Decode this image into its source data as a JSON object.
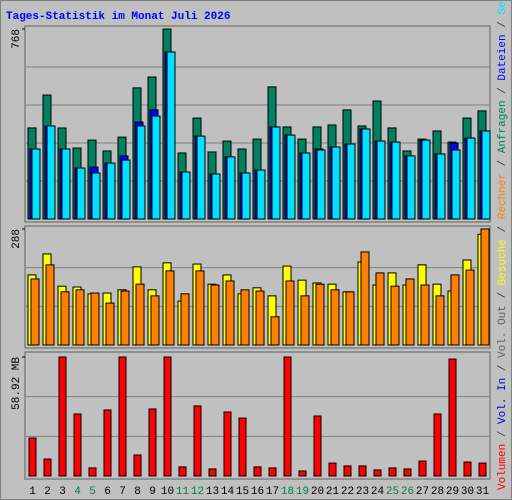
{
  "chart_data": {
    "type": "bar",
    "title": "Tages-Statistik im Monat Juli 2026",
    "categories": [
      "1",
      "2",
      "3",
      "4",
      "5",
      "6",
      "7",
      "8",
      "9",
      "10",
      "11",
      "12",
      "13",
      "14",
      "15",
      "16",
      "17",
      "18",
      "19",
      "20",
      "21",
      "22",
      "23",
      "24",
      "25",
      "26",
      "27",
      "28",
      "29",
      "30",
      "31"
    ],
    "category_colors": [
      "#000000",
      "#000000",
      "#000000",
      "#008040",
      "#008040",
      "#000000",
      "#000000",
      "#000000",
      "#000000",
      "#000000",
      "#008040",
      "#008040",
      "#000000",
      "#000000",
      "#000000",
      "#000000",
      "#000000",
      "#008040",
      "#008040",
      "#000000",
      "#000000",
      "#000000",
      "#000000",
      "#000000",
      "#008040",
      "#008040",
      "#000000",
      "#000000",
      "#000000",
      "#000000",
      "#000000"
    ],
    "panels": [
      {
        "ylim": [
          0,
          768
        ],
        "yticks": [
          768
        ],
        "series": [
          {
            "name": "Anfragen",
            "color": "#00805c",
            "values": [
              368,
              501,
              368,
              287,
              319,
              275,
              331,
              530,
              574,
              768,
              267,
              408,
              271,
              315,
              283,
              323,
              534,
              372,
              323,
              372,
              380,
              441,
              376,
              477,
              368,
              275,
              323,
              356,
              311,
              408,
              437
            ]
          },
          {
            "name": "Dateien",
            "color": "#0000ff",
            "values": [
              283,
              376,
              283,
              206,
              210,
              226,
              255,
              392,
              441,
              675,
              190,
              335,
              182,
              251,
              186,
              198,
              372,
              339,
              267,
              283,
              291,
              303,
              364,
              315,
              311,
              255,
              319,
              263,
              307,
              327,
              356
            ]
          },
          {
            "name": "Seiten",
            "color": "#00e0ff",
            "values": [
              283,
              376,
              283,
              206,
              186,
              226,
              238,
              376,
              416,
              675,
              190,
              335,
              182,
              251,
              186,
              198,
              372,
              339,
              267,
              279,
              291,
              303,
              364,
              315,
              311,
              255,
              319,
              263,
              279,
              327,
              356
            ]
          }
        ]
      },
      {
        "ylim": [
          0,
          288
        ],
        "yticks": [
          288
        ],
        "series": [
          {
            "name": "Besuche",
            "color": "#ffff00",
            "values": [
              174,
              226,
              146,
              144,
              127,
              129,
              137,
              194,
              137,
              204,
              109,
              201,
              151,
              174,
              127,
              142,
              122,
              196,
              161,
              154,
              151,
              132,
              206,
              149,
              179,
              149,
              199,
              151,
              134,
              211,
              275
            ]
          },
          {
            "name": "Rechner",
            "color": "#ff8000",
            "values": [
              164,
              199,
              132,
              137,
              129,
              104,
              134,
              151,
              122,
              184,
              127,
              184,
              149,
              159,
              137,
              134,
              70,
              159,
              122,
              151,
              137,
              132,
              231,
              179,
              146,
              164,
              149,
              122,
              174,
              186,
              288
            ]
          }
        ]
      },
      {
        "ylim": [
          0,
          58.92
        ],
        "yticks": [
          {
            "value": 58.92,
            "label": "58.92 MB"
          }
        ],
        "series": [
          {
            "name": "Volumen",
            "color": "#ff0000",
            "values": [
              18.8,
              8.4,
              58.92,
              30.7,
              4.0,
              32.7,
              58.92,
              10.4,
              33.2,
              58.92,
              4.5,
              34.7,
              3.5,
              31.7,
              28.7,
              4.5,
              4.0,
              58.92,
              2.5,
              29.7,
              6.4,
              5.0,
              5.0,
              3.0,
              4.0,
              3.5,
              7.4,
              30.7,
              57.9,
              6.9,
              6.4
            ]
          },
          {
            "name": "Vol. In",
            "color": "#0000c0"
          },
          {
            "name": "Vol. Out",
            "color": "#606060"
          }
        ]
      }
    ]
  }
}
